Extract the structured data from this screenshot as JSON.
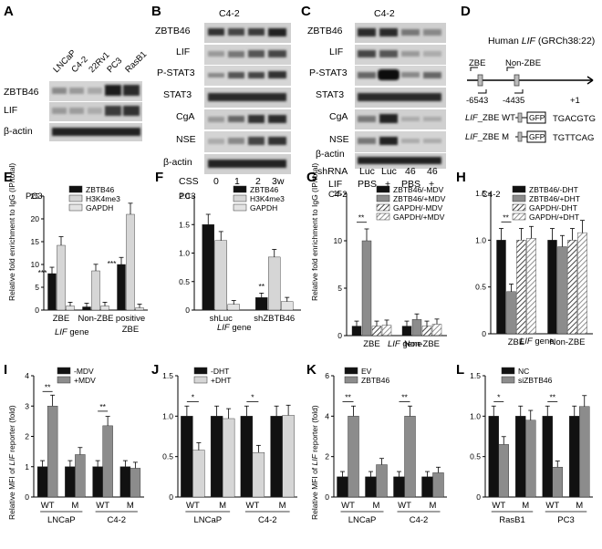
{
  "panels": {
    "A": "A",
    "B": "B",
    "C": "C",
    "D": "D",
    "E": "E",
    "F": "F",
    "G": "G",
    "H": "H",
    "I": "I",
    "J": "J",
    "K": "K",
    "L": "L"
  },
  "blot_a": {
    "lanes": [
      "LNCaP",
      "C4-2",
      "22Rv1",
      "PC3",
      "RasB1"
    ],
    "rows": [
      "ZBTB46",
      "LIF",
      "β-actin"
    ]
  },
  "blot_b": {
    "title": "C4-2",
    "rows": [
      "ZBTB46",
      "LIF",
      "P-STAT3",
      "STAT3",
      "CgA",
      "NSE",
      "β-actin"
    ],
    "css_label": "CSS",
    "css_values": [
      "0",
      "1",
      "2",
      "3w"
    ]
  },
  "blot_c": {
    "title": "C4-2",
    "rows": [
      "ZBTB46",
      "LIF",
      "P-STAT3",
      "STAT3",
      "CgA",
      "NSE",
      "β-actin"
    ],
    "shrna_label": "shRNA",
    "shrna_values": [
      "Luc",
      "Luc",
      "46",
      "46"
    ],
    "lif_label": "LIF",
    "lif_values": [
      "PBS",
      "+",
      "PBS",
      "+"
    ]
  },
  "diagram_d": {
    "title_pre": "Human ",
    "title_gene": "LIF",
    "title_post": " (GRCh38:22)",
    "zbe": "ZBE",
    "nonzbe": "Non-ZBE",
    "pos1": "-6543",
    "pos2": "-4435",
    "pos3": "+1",
    "wt_gene": "LIF",
    "wt_label": "_ZBE WT",
    "m_gene": "LIF",
    "m_label": "_ZBE M",
    "gfp": "GFP",
    "wt_seq": "TGACGTG",
    "m_seq": "TGTTCAG"
  },
  "ylabel_chip": "Relative fold enrichment to IgG (IP/total)",
  "ylabel_mfi_pre": "Relative MFI of ",
  "ylabel_mfi_gene": "LIF",
  "ylabel_mfi_post": " reporter (fold)",
  "gene_label": "LIF",
  "gene_suffix": " gene",
  "chart_data": [
    {
      "panel": "E",
      "type": "bar",
      "title": "PC3",
      "groups": [
        "ZBE",
        "Non-ZBE",
        "positive ZBE"
      ],
      "series": [
        {
          "name": "ZBTB46",
          "values": [
            8,
            0.7,
            10
          ]
        },
        {
          "name": "H3K4me3",
          "values": [
            14.2,
            8.6,
            21
          ]
        },
        {
          "name": "GAPDH",
          "values": [
            0.9,
            0.9,
            0.5
          ]
        }
      ],
      "ylim": [
        0,
        25
      ],
      "yticks": [
        "0",
        "5",
        "10",
        "15",
        "20",
        "25"
      ],
      "sig": [
        "***",
        "***"
      ]
    },
    {
      "panel": "F",
      "type": "bar",
      "title": "PC3",
      "groups": [
        "shLuc",
        "shZBTB46"
      ],
      "series": [
        {
          "name": "ZBTB46",
          "values": [
            1.5,
            0.22
          ]
        },
        {
          "name": "H3K4me3",
          "values": [
            1.22,
            0.93
          ]
        },
        {
          "name": "GAPDH",
          "values": [
            0.1,
            0.15
          ]
        }
      ],
      "ylim": [
        0,
        2
      ],
      "yticks": [
        "0",
        "0.5",
        "1.0",
        "1.5",
        "2.0"
      ],
      "sig": [
        "**"
      ]
    },
    {
      "panel": "G",
      "type": "bar",
      "title": "C4-2",
      "groups": [
        "ZBE",
        "Non-ZBE"
      ],
      "series": [
        {
          "name": "ZBTB46/-MDV",
          "values": [
            1,
            1
          ]
        },
        {
          "name": "ZBTB46/+MDV",
          "values": [
            10,
            1.7
          ]
        },
        {
          "name": "GAPDH/-MDV",
          "values": [
            1,
            1
          ]
        },
        {
          "name": "GAPDH/+MDV",
          "values": [
            1.1,
            1.2
          ]
        }
      ],
      "ylim": [
        0,
        15
      ],
      "yticks": [
        "0",
        "5",
        "10",
        "15"
      ],
      "sig": [
        "**"
      ]
    },
    {
      "panel": "H",
      "type": "bar",
      "title": "C4-2",
      "groups": [
        "ZBE",
        "Non-ZBE"
      ],
      "series": [
        {
          "name": "ZBTB46/-DHT",
          "values": [
            1,
            1
          ]
        },
        {
          "name": "ZBTB46/+DHT",
          "values": [
            0.45,
            0.93
          ]
        },
        {
          "name": "GAPDH/-DHT",
          "values": [
            1,
            1
          ]
        },
        {
          "name": "GAPDH/+DHT",
          "values": [
            1.02,
            1.08
          ]
        }
      ],
      "ylim": [
        0,
        1.5
      ],
      "yticks": [
        "0",
        "0.5",
        "1.0",
        "1.5"
      ],
      "sig": [
        "**"
      ]
    },
    {
      "panel": "I",
      "type": "bar",
      "groups": [
        "WT",
        "M",
        "WT",
        "M"
      ],
      "cells": [
        "LNCaP",
        "C4-2"
      ],
      "series": [
        {
          "name": "-MDV",
          "values": [
            1,
            1,
            1,
            1
          ]
        },
        {
          "name": "+MDV",
          "values": [
            3,
            1.4,
            2.35,
            0.95
          ]
        }
      ],
      "ylim": [
        0,
        4
      ],
      "yticks": [
        "0",
        "1",
        "2",
        "3",
        "4"
      ],
      "sig": [
        "**",
        "**"
      ]
    },
    {
      "panel": "J",
      "type": "bar",
      "groups": [
        "WT",
        "M",
        "WT",
        "M"
      ],
      "cells": [
        "LNCaP",
        "C4-2"
      ],
      "series": [
        {
          "name": "-DHT",
          "values": [
            1,
            1,
            1,
            1
          ]
        },
        {
          "name": "+DHT",
          "values": [
            0.58,
            0.97,
            0.55,
            1.01
          ]
        }
      ],
      "ylim": [
        0,
        1.5
      ],
      "yticks": [
        "0",
        "0.5",
        "1.0",
        "1.5"
      ],
      "sig": [
        "*",
        "*"
      ]
    },
    {
      "panel": "K",
      "type": "bar",
      "groups": [
        "WT",
        "M",
        "WT",
        "M"
      ],
      "cells": [
        "LNCaP",
        "C4-2"
      ],
      "series": [
        {
          "name": "EV",
          "values": [
            1,
            1,
            1,
            1
          ]
        },
        {
          "name": "ZBTB46",
          "values": [
            4,
            1.6,
            4,
            1.2
          ]
        }
      ],
      "ylim": [
        0,
        6
      ],
      "yticks": [
        "0",
        "2",
        "4",
        "6"
      ],
      "sig": [
        "**",
        "**"
      ]
    },
    {
      "panel": "L",
      "type": "bar",
      "groups": [
        "WT",
        "M",
        "WT",
        "M"
      ],
      "cells": [
        "RasB1",
        "PC3"
      ],
      "series": [
        {
          "name": "NC",
          "values": [
            1,
            1,
            1,
            1
          ]
        },
        {
          "name": "siZBTB46",
          "values": [
            0.65,
            0.95,
            0.37,
            1.12
          ]
        }
      ],
      "ylim": [
        0,
        1.5
      ],
      "yticks": [
        "0",
        "0.5",
        "1.0",
        "1.5"
      ],
      "sig": [
        "*",
        "**"
      ]
    }
  ],
  "colors": {
    "black": "#111111",
    "dark_gray": "#8c8c8c",
    "light_gray": "#d6d6d6",
    "hatch": "#555555"
  }
}
